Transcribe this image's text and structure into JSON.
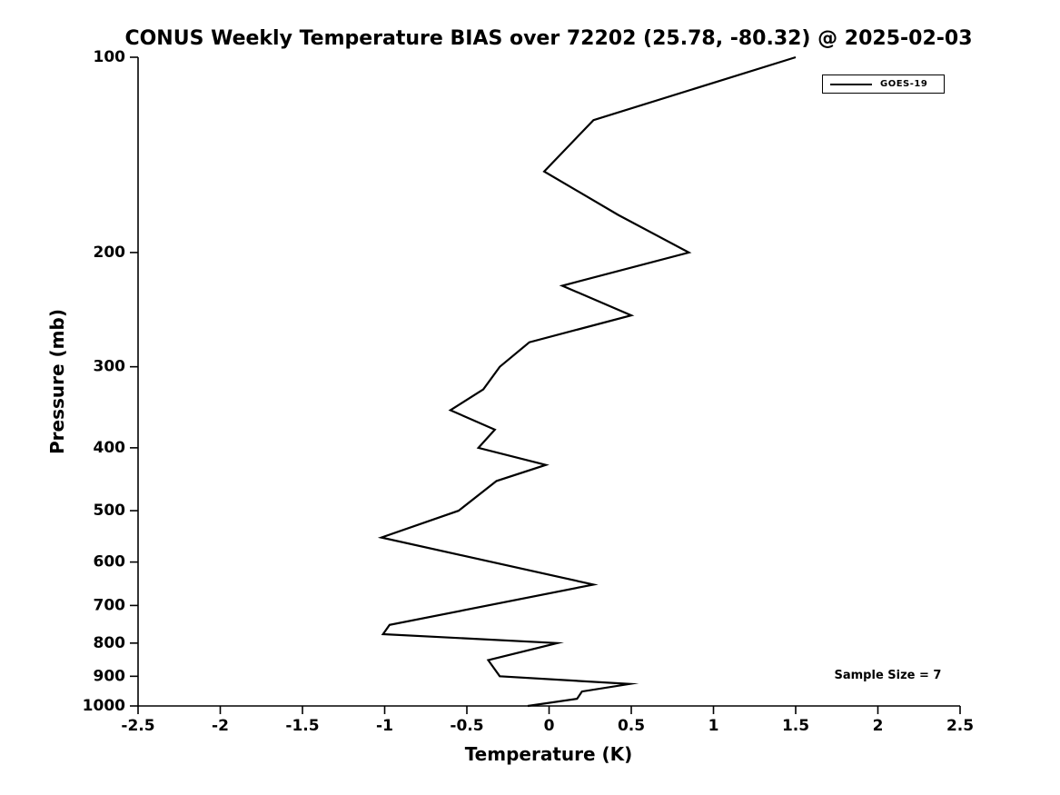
{
  "chart_data": {
    "type": "line",
    "title": "CONUS Weekly Temperature BIAS over 72202 (25.78, -80.32) @ 2025-02-03",
    "xlabel": "Temperature (K)",
    "ylabel": "Pressure (mb)",
    "xlim": [
      -2.5,
      2.5
    ],
    "ylim": [
      1000,
      100
    ],
    "yscale": "log",
    "grid": false,
    "x_ticks": [
      -2.5,
      -2,
      -1.5,
      -1,
      -0.5,
      0,
      0.5,
      1,
      1.5,
      2,
      2.5
    ],
    "y_ticks": [
      100,
      200,
      300,
      400,
      500,
      600,
      700,
      800,
      900,
      1000
    ],
    "legend_position": "top-right",
    "series": [
      {
        "name": "GOES-19",
        "color": "#000000",
        "points_note": "pairs of [pressure_mb, temperature_bias_K] from top of atmosphere to surface",
        "points": [
          [
            100,
            1.5
          ],
          [
            125,
            0.27
          ],
          [
            150,
            -0.03
          ],
          [
            175,
            0.42
          ],
          [
            200,
            0.85
          ],
          [
            225,
            0.08
          ],
          [
            250,
            0.5
          ],
          [
            275,
            -0.12
          ],
          [
            300,
            -0.3
          ],
          [
            325,
            -0.4
          ],
          [
            350,
            -0.6
          ],
          [
            375,
            -0.33
          ],
          [
            400,
            -0.43
          ],
          [
            425,
            -0.02
          ],
          [
            450,
            -0.32
          ],
          [
            500,
            -0.55
          ],
          [
            550,
            -1.02
          ],
          [
            650,
            0.27
          ],
          [
            750,
            -0.97
          ],
          [
            775,
            -1.01
          ],
          [
            800,
            0.05
          ],
          [
            850,
            -0.37
          ],
          [
            900,
            -0.3
          ],
          [
            925,
            0.49
          ],
          [
            950,
            0.2
          ],
          [
            975,
            0.17
          ],
          [
            1000,
            -0.13
          ]
        ]
      }
    ],
    "annotations": [
      "Sample Size = 7"
    ]
  }
}
